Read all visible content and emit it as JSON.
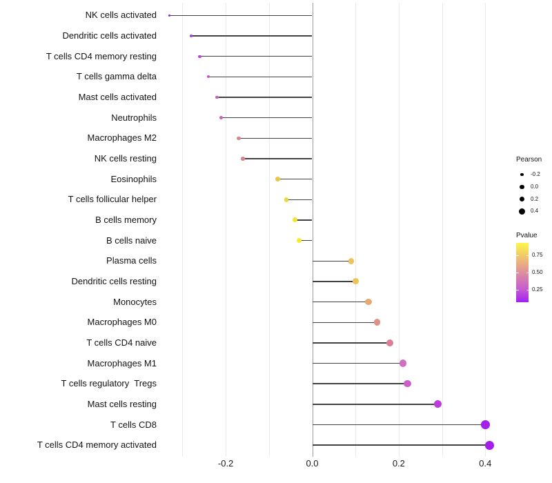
{
  "chart_data": {
    "type": "scatter",
    "variant": "lollipop",
    "title": "",
    "xlabel": "",
    "ylabel": "",
    "xlim": [
      -0.35,
      0.44
    ],
    "grid": "vertical-only",
    "x_ticks": [
      {
        "label": "-0.2",
        "value": -0.2
      },
      {
        "label": "0.0",
        "value": 0.0
      },
      {
        "label": "0.2",
        "value": 0.2
      },
      {
        "label": "0.4",
        "value": 0.4
      }
    ],
    "points": [
      {
        "category": "NK cells activated",
        "pearson": -0.33,
        "color": "#8726cc"
      },
      {
        "category": "Dendritic cells activated",
        "pearson": -0.28,
        "color": "#a342d2"
      },
      {
        "category": "T cells CD4 memory resting",
        "pearson": -0.26,
        "color": "#af4cd0"
      },
      {
        "category": "T cells gamma delta",
        "pearson": -0.24,
        "color": "#bf58c8"
      },
      {
        "category": "Mast cells activated",
        "pearson": -0.22,
        "color": "#c763b4"
      },
      {
        "category": "Neutrophils",
        "pearson": -0.21,
        "color": "#c468ae"
      },
      {
        "category": "Macrophages M2",
        "pearson": -0.17,
        "color": "#d6848e"
      },
      {
        "category": "NK cells resting",
        "pearson": -0.16,
        "color": "#d8868b"
      },
      {
        "category": "Eosinophils",
        "pearson": -0.08,
        "color": "#ebc843"
      },
      {
        "category": "T cells follicular helper",
        "pearson": -0.06,
        "color": "#ecd73d"
      },
      {
        "category": "B cells memory",
        "pearson": -0.04,
        "color": "#f2e531"
      },
      {
        "category": "B cells naive",
        "pearson": -0.03,
        "color": "#f5ed2b"
      },
      {
        "category": "Plasma cells",
        "pearson": 0.09,
        "color": "#edc45d"
      },
      {
        "category": "Dendritic cells resting",
        "pearson": 0.1,
        "color": "#eec25a"
      },
      {
        "category": "Monocytes",
        "pearson": 0.13,
        "color": "#e8a873"
      },
      {
        "category": "Macrophages M0",
        "pearson": 0.15,
        "color": "#df9184"
      },
      {
        "category": "T cells CD4 naive",
        "pearson": 0.18,
        "color": "#da8095"
      },
      {
        "category": "Macrophages M1",
        "pearson": 0.21,
        "color": "#cf6fc0"
      },
      {
        "category": "T cells regulatory  Tregs",
        "pearson": 0.22,
        "color": "#cb5fc7"
      },
      {
        "category": "Mast cells resting",
        "pearson": 0.29,
        "color": "#bb3bdc"
      },
      {
        "category": "T cells CD8",
        "pearson": 0.4,
        "color": "#a321e9"
      },
      {
        "category": "T cells CD4 memory activated",
        "pearson": 0.41,
        "color": "#a41deb"
      }
    ],
    "legends": {
      "size": {
        "title": "Pearson",
        "items": [
          {
            "label": "-0.2",
            "value": -0.2
          },
          {
            "label": "0.0",
            "value": 0.0
          },
          {
            "label": "0.2",
            "value": 0.2
          },
          {
            "label": "0.4",
            "value": 0.4
          }
        ]
      },
      "color": {
        "title": "Pvalue",
        "ticks": [
          {
            "label": "0.75",
            "pos": 0.21
          },
          {
            "label": "0.50",
            "pos": 0.5
          },
          {
            "label": "0.25",
            "pos": 0.79
          }
        ],
        "gradient": [
          {
            "pos": 0.0,
            "color": "#fdf64b"
          },
          {
            "pos": 0.21,
            "color": "#f2ca69"
          },
          {
            "pos": 0.5,
            "color": "#dd8f9c"
          },
          {
            "pos": 0.79,
            "color": "#c55ad3"
          },
          {
            "pos": 1.0,
            "color": "#a11ff2"
          }
        ]
      }
    }
  }
}
